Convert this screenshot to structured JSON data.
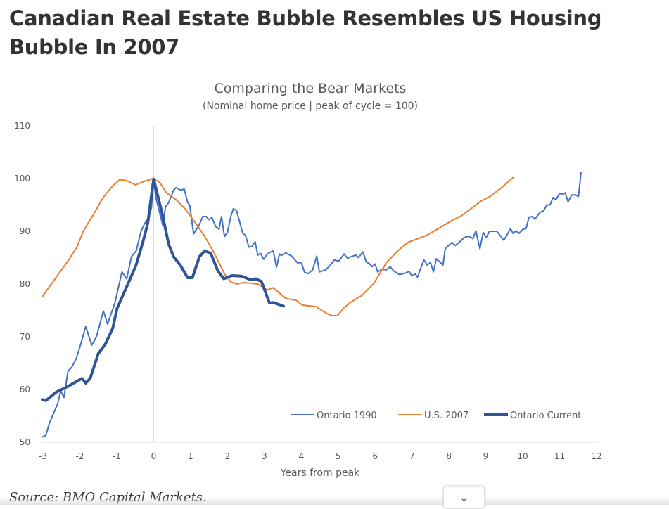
{
  "article": {
    "headline": "Canadian Real Estate Bubble Resembles US Housing Bubble In 2007",
    "source": "Source: BMO Capital Markets.",
    "expand_icon": "chevron-down-icon"
  },
  "chart_data": {
    "type": "line",
    "title": "Comparing the Bear Markets",
    "subtitle": "(Nominal home price | peak of cycle = 100)",
    "xlabel": "Years from peak",
    "ylabel": "",
    "xlim": [
      -3,
      12
    ],
    "ylim": [
      50,
      110
    ],
    "xticks": [
      "-3",
      "-2",
      "-1",
      "0",
      "1",
      "2",
      "3",
      "4",
      "5",
      "6",
      "7",
      "8",
      "9",
      "10",
      "11",
      "12"
    ],
    "yticks": [
      "50",
      "60",
      "70",
      "80",
      "90",
      "100",
      "110"
    ],
    "grid": false,
    "legend_position": "bottom-right",
    "series": [
      {
        "name": "Ontario 1990",
        "color": "#4472c4",
        "width": "thin",
        "points": [
          [
            -3.02,
            51.0
          ],
          [
            -2.92,
            51.3
          ],
          [
            -2.82,
            53.7
          ],
          [
            -2.6,
            57.3
          ],
          [
            -2.52,
            59.7
          ],
          [
            -2.43,
            58.5
          ],
          [
            -2.32,
            63.5
          ],
          [
            -2.22,
            64.2
          ],
          [
            -2.1,
            65.8
          ],
          [
            -1.97,
            68.7
          ],
          [
            -1.84,
            72.0
          ],
          [
            -1.68,
            68.4
          ],
          [
            -1.55,
            70.0
          ],
          [
            -1.36,
            74.9
          ],
          [
            -1.25,
            72.4
          ],
          [
            -1.05,
            76.4
          ],
          [
            -0.86,
            82.3
          ],
          [
            -0.73,
            81.0
          ],
          [
            -0.6,
            85.2
          ],
          [
            -0.47,
            86.3
          ],
          [
            -0.35,
            89.8
          ],
          [
            -0.25,
            91.4
          ],
          [
            -0.13,
            92.7
          ],
          [
            -0.06,
            94.5
          ],
          [
            0,
            100
          ],
          [
            0.06,
            96.4
          ],
          [
            0.25,
            91.1
          ],
          [
            0.32,
            94.6
          ],
          [
            0.41,
            95.5
          ],
          [
            0.54,
            97.8
          ],
          [
            0.61,
            98.3
          ],
          [
            0.73,
            97.8
          ],
          [
            0.83,
            98.0
          ],
          [
            0.92,
            95.5
          ],
          [
            0.98,
            94.9
          ],
          [
            1.08,
            89.5
          ],
          [
            1.24,
            91.3
          ],
          [
            1.33,
            92.8
          ],
          [
            1.43,
            92.8
          ],
          [
            1.49,
            92.2
          ],
          [
            1.58,
            92.6
          ],
          [
            1.68,
            90.9
          ],
          [
            1.77,
            90.4
          ],
          [
            1.84,
            92.8
          ],
          [
            1.92,
            89.0
          ],
          [
            2.0,
            89.8
          ],
          [
            2.09,
            92.8
          ],
          [
            2.16,
            94.3
          ],
          [
            2.25,
            93.9
          ],
          [
            2.41,
            89.7
          ],
          [
            2.49,
            89.2
          ],
          [
            2.58,
            87.0
          ],
          [
            2.66,
            87.1
          ],
          [
            2.75,
            88.0
          ],
          [
            2.82,
            85.5
          ],
          [
            2.9,
            85.8
          ],
          [
            2.98,
            84.7
          ],
          [
            3.08,
            85.7
          ],
          [
            3.24,
            86.3
          ],
          [
            3.33,
            83.2
          ],
          [
            3.41,
            85.7
          ],
          [
            3.46,
            85.4
          ],
          [
            3.58,
            85.9
          ],
          [
            3.74,
            85.3
          ],
          [
            3.9,
            84.0
          ],
          [
            4.0,
            84.1
          ],
          [
            4.09,
            82.2
          ],
          [
            4.19,
            82.0
          ],
          [
            4.31,
            82.7
          ],
          [
            4.42,
            85.3
          ],
          [
            4.49,
            82.3
          ],
          [
            4.66,
            82.7
          ],
          [
            4.79,
            83.6
          ],
          [
            4.9,
            84.6
          ],
          [
            5.01,
            84.3
          ],
          [
            5.16,
            85.7
          ],
          [
            5.25,
            84.9
          ],
          [
            5.36,
            85.2
          ],
          [
            5.48,
            85.5
          ],
          [
            5.55,
            85.0
          ],
          [
            5.67,
            86.1
          ],
          [
            5.76,
            84.2
          ],
          [
            5.84,
            83.9
          ],
          [
            5.92,
            83.3
          ],
          [
            6.0,
            83.8
          ],
          [
            6.07,
            82.3
          ],
          [
            6.19,
            82.8
          ],
          [
            6.31,
            82.7
          ],
          [
            6.41,
            83.3
          ],
          [
            6.5,
            82.5
          ],
          [
            6.66,
            81.8
          ],
          [
            6.79,
            82.0
          ],
          [
            6.92,
            82.4
          ],
          [
            7.0,
            81.5
          ],
          [
            7.08,
            82.0
          ],
          [
            7.15,
            81.3
          ],
          [
            7.32,
            84.6
          ],
          [
            7.41,
            83.6
          ],
          [
            7.5,
            84.1
          ],
          [
            7.58,
            82.3
          ],
          [
            7.66,
            84.8
          ],
          [
            7.84,
            83.6
          ],
          [
            7.9,
            86.7
          ],
          [
            8.08,
            87.9
          ],
          [
            8.17,
            87.3
          ],
          [
            8.28,
            87.9
          ],
          [
            8.41,
            88.8
          ],
          [
            8.54,
            89.1
          ],
          [
            8.65,
            88.6
          ],
          [
            8.73,
            90.1
          ],
          [
            8.84,
            86.7
          ],
          [
            8.93,
            89.8
          ],
          [
            9.01,
            88.8
          ],
          [
            9.1,
            90.0
          ],
          [
            9.3,
            90.0
          ],
          [
            9.49,
            88.3
          ],
          [
            9.67,
            90.5
          ],
          [
            9.74,
            89.6
          ],
          [
            9.81,
            90.1
          ],
          [
            9.9,
            89.6
          ],
          [
            10.01,
            90.4
          ],
          [
            10.09,
            90.5
          ],
          [
            10.17,
            92.7
          ],
          [
            10.25,
            92.8
          ],
          [
            10.33,
            92.3
          ],
          [
            10.47,
            93.6
          ],
          [
            10.57,
            93.9
          ],
          [
            10.65,
            95.0
          ],
          [
            10.74,
            95.0
          ],
          [
            10.82,
            96.4
          ],
          [
            10.9,
            96.0
          ],
          [
            11.0,
            97.2
          ],
          [
            11.08,
            97.0
          ],
          [
            11.15,
            97.3
          ],
          [
            11.23,
            95.6
          ],
          [
            11.33,
            96.9
          ],
          [
            11.43,
            96.9
          ],
          [
            11.51,
            96.6
          ],
          [
            11.58,
            101.2
          ]
        ]
      },
      {
        "name": "U.S. 2007",
        "color": "#ed7d31",
        "width": "thin",
        "points": [
          [
            -3.02,
            77.6
          ],
          [
            -2.64,
            81.3
          ],
          [
            -2.32,
            84.4
          ],
          [
            -2.07,
            87.1
          ],
          [
            -1.91,
            90.0
          ],
          [
            -1.62,
            93.3
          ],
          [
            -1.37,
            96.4
          ],
          [
            -1.11,
            98.6
          ],
          [
            -0.92,
            99.8
          ],
          [
            -0.73,
            99.6
          ],
          [
            -0.49,
            98.8
          ],
          [
            -0.29,
            99.4
          ],
          [
            0,
            100
          ],
          [
            0.16,
            99.3
          ],
          [
            0.35,
            97.3
          ],
          [
            0.61,
            96.0
          ],
          [
            0.86,
            94.2
          ],
          [
            1.05,
            92.4
          ],
          [
            1.36,
            89.3
          ],
          [
            1.62,
            86.2
          ],
          [
            1.77,
            84.0
          ],
          [
            1.93,
            81.8
          ],
          [
            2.09,
            80.4
          ],
          [
            2.25,
            80.0
          ],
          [
            2.44,
            80.3
          ],
          [
            2.82,
            80.0
          ],
          [
            3.08,
            78.9
          ],
          [
            3.24,
            79.3
          ],
          [
            3.58,
            77.3
          ],
          [
            3.71,
            77.1
          ],
          [
            3.87,
            76.9
          ],
          [
            4.03,
            76.0
          ],
          [
            4.41,
            75.7
          ],
          [
            4.67,
            74.5
          ],
          [
            4.83,
            74.0
          ],
          [
            4.98,
            74.0
          ],
          [
            5.14,
            75.4
          ],
          [
            5.33,
            76.5
          ],
          [
            5.65,
            77.9
          ],
          [
            5.96,
            80.1
          ],
          [
            6.12,
            81.9
          ],
          [
            6.31,
            84.1
          ],
          [
            6.63,
            86.4
          ],
          [
            6.89,
            87.9
          ],
          [
            7.08,
            88.4
          ],
          [
            7.39,
            89.2
          ],
          [
            7.71,
            90.5
          ],
          [
            8.09,
            92.1
          ],
          [
            8.35,
            93.0
          ],
          [
            8.6,
            94.3
          ],
          [
            8.86,
            95.7
          ],
          [
            9.11,
            96.6
          ],
          [
            9.43,
            98.3
          ],
          [
            9.74,
            100.2
          ]
        ]
      },
      {
        "name": "Ontario Current",
        "color": "#2f5597",
        "width": "thick",
        "points": [
          [
            -3.02,
            58.1
          ],
          [
            -2.92,
            57.9
          ],
          [
            -2.64,
            59.5
          ],
          [
            -2.32,
            60.6
          ],
          [
            -1.94,
            62.1
          ],
          [
            -1.84,
            61.2
          ],
          [
            -1.72,
            62.1
          ],
          [
            -1.5,
            66.8
          ],
          [
            -1.31,
            68.6
          ],
          [
            -1.11,
            71.6
          ],
          [
            -0.99,
            75.4
          ],
          [
            -0.73,
            79.5
          ],
          [
            -0.48,
            83.5
          ],
          [
            -0.29,
            88.0
          ],
          [
            -0.16,
            91.5
          ],
          [
            0,
            99.9
          ],
          [
            0.22,
            93.7
          ],
          [
            0.41,
            87.5
          ],
          [
            0.54,
            85.2
          ],
          [
            0.73,
            83.5
          ],
          [
            0.92,
            81.2
          ],
          [
            1.05,
            81.2
          ],
          [
            1.24,
            85.2
          ],
          [
            1.39,
            86.3
          ],
          [
            1.55,
            85.8
          ],
          [
            1.74,
            82.5
          ],
          [
            1.9,
            81.0
          ],
          [
            2.12,
            81.6
          ],
          [
            2.38,
            81.5
          ],
          [
            2.63,
            80.8
          ],
          [
            2.76,
            81.0
          ],
          [
            2.92,
            80.5
          ],
          [
            3.14,
            76.4
          ],
          [
            3.24,
            76.5
          ],
          [
            3.52,
            75.8
          ]
        ]
      }
    ]
  }
}
